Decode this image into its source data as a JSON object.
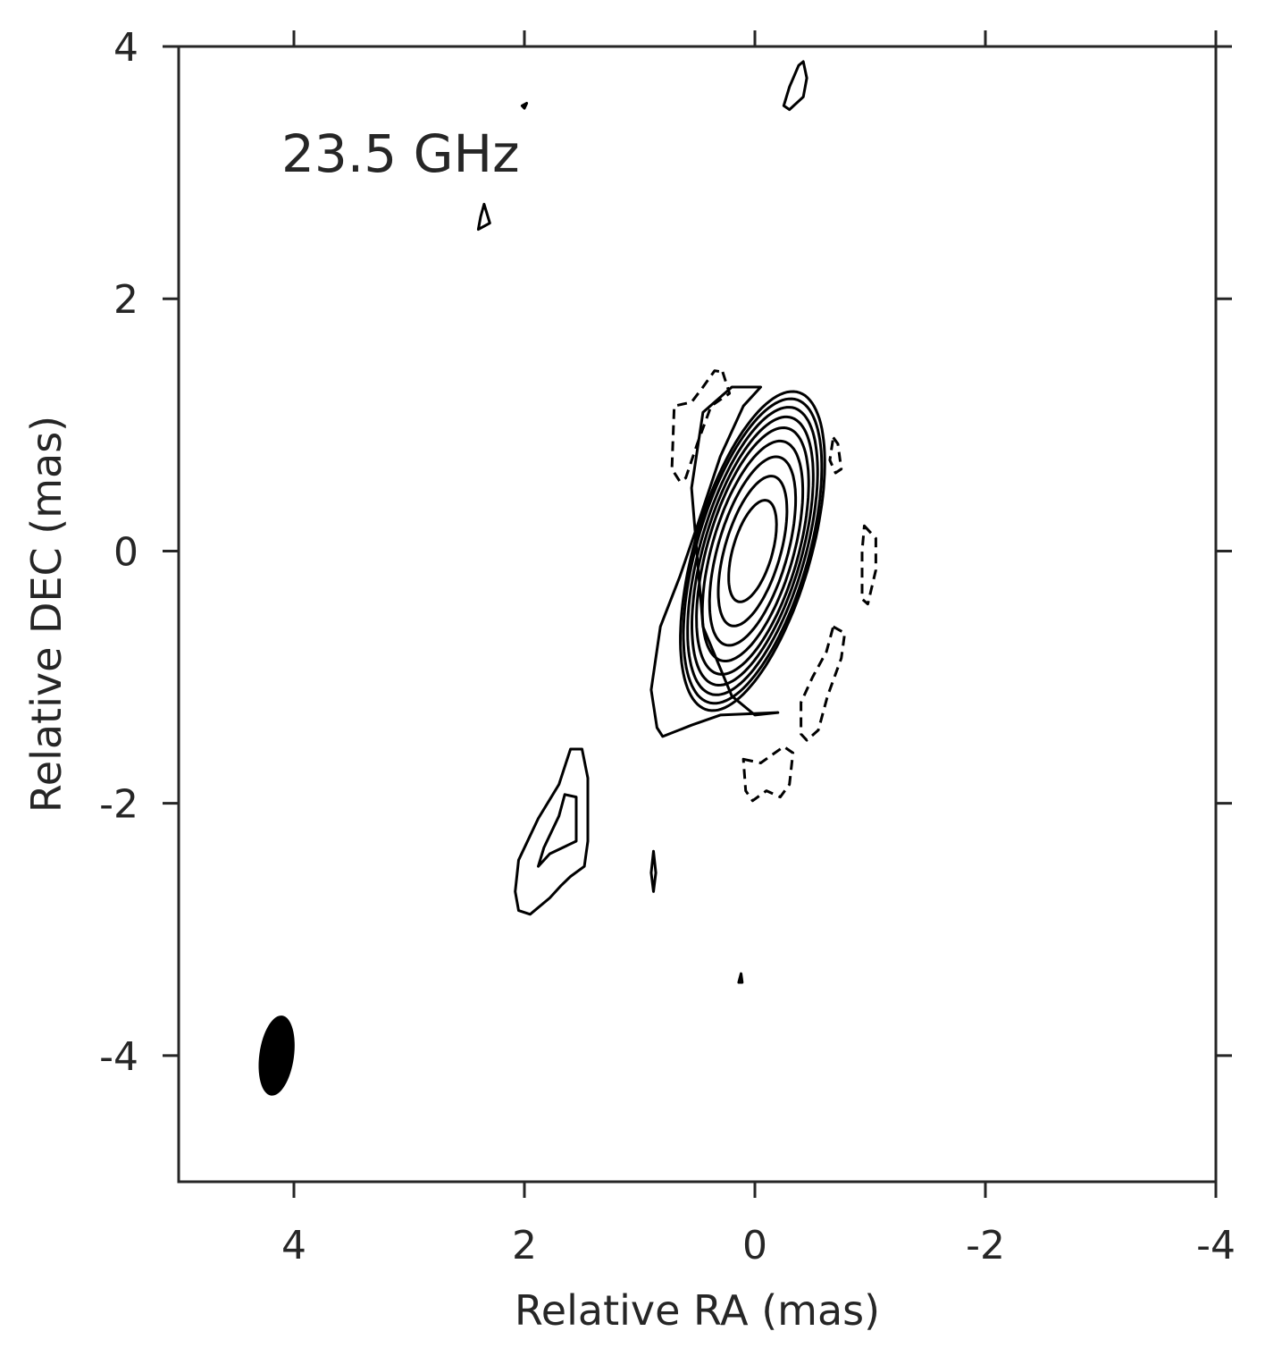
{
  "chart_data": {
    "type": "contour",
    "title": "",
    "annotation": "23.5 GHz",
    "xlabel": "Relative RA (mas)",
    "ylabel": "Relative DEC (mas)",
    "xlim": [
      5,
      -4
    ],
    "ylim": [
      -5,
      4
    ],
    "x_ticks": [
      4,
      2,
      0,
      -2,
      -4
    ],
    "x_tick_labels": [
      "4",
      "2",
      "0",
      "-2",
      "-4"
    ],
    "y_ticks": [
      4,
      2,
      0,
      -2,
      -4
    ],
    "y_tick_labels": [
      "4",
      "2",
      "0",
      "-2",
      "-4"
    ],
    "grid": false,
    "axis_color": "#262626",
    "contour_color": "#000000",
    "core": {
      "center": [
        0.02,
        0.0
      ],
      "position_angle_deg": 18,
      "levels": [
        {
          "semi_major": 0.42,
          "semi_minor": 0.17
        },
        {
          "semi_major": 0.62,
          "semi_minor": 0.24
        },
        {
          "semi_major": 0.78,
          "semi_minor": 0.3
        },
        {
          "semi_major": 0.91,
          "semi_minor": 0.35
        },
        {
          "semi_major": 1.02,
          "semi_minor": 0.39
        },
        {
          "semi_major": 1.11,
          "semi_minor": 0.42
        },
        {
          "semi_major": 1.19,
          "semi_minor": 0.45
        },
        {
          "semi_major": 1.26,
          "semi_minor": 0.48
        },
        {
          "semi_major": 1.32,
          "semi_minor": 0.5
        }
      ]
    },
    "positive_contours": [
      {
        "name": "core-outer-extension",
        "points": [
          [
            0.2,
            1.3
          ],
          [
            0.45,
            1.1
          ],
          [
            0.55,
            0.5
          ],
          [
            0.45,
            -0.6
          ],
          [
            0.2,
            -1.15
          ],
          [
            0.0,
            -1.3
          ],
          [
            -0.2,
            -1.28
          ],
          [
            0.3,
            -1.3
          ],
          [
            0.55,
            -1.38
          ],
          [
            0.8,
            -1.47
          ],
          [
            0.85,
            -1.4
          ],
          [
            0.9,
            -1.1
          ],
          [
            0.82,
            -0.6
          ],
          [
            0.65,
            -0.2
          ],
          [
            0.5,
            0.2
          ],
          [
            0.3,
            0.75
          ],
          [
            0.1,
            1.15
          ],
          [
            -0.05,
            1.3
          ]
        ]
      },
      {
        "name": "northern-blob",
        "points": [
          [
            -0.42,
            3.88
          ],
          [
            -0.45,
            3.75
          ],
          [
            -0.42,
            3.6
          ],
          [
            -0.3,
            3.5
          ],
          [
            -0.25,
            3.53
          ],
          [
            -0.3,
            3.68
          ],
          [
            -0.38,
            3.85
          ],
          [
            -0.42,
            3.88
          ]
        ]
      },
      {
        "name": "upper-left-blob",
        "points": [
          [
            2.35,
            2.75
          ],
          [
            2.3,
            2.6
          ],
          [
            2.4,
            2.55
          ],
          [
            2.38,
            2.65
          ],
          [
            2.35,
            2.75
          ]
        ]
      },
      {
        "name": "upper-left-speck",
        "points": [
          [
            2.02,
            3.53
          ],
          [
            1.98,
            3.55
          ],
          [
            2.0,
            3.51
          ],
          [
            2.02,
            3.53
          ]
        ]
      },
      {
        "name": "jet-knot-outer",
        "points": [
          [
            1.5,
            -1.57
          ],
          [
            1.6,
            -1.57
          ],
          [
            1.7,
            -1.85
          ],
          [
            1.88,
            -2.12
          ],
          [
            2.05,
            -2.45
          ],
          [
            2.08,
            -2.7
          ],
          [
            2.05,
            -2.85
          ],
          [
            1.95,
            -2.88
          ],
          [
            1.78,
            -2.75
          ],
          [
            1.68,
            -2.65
          ],
          [
            1.6,
            -2.58
          ],
          [
            1.48,
            -2.5
          ],
          [
            1.45,
            -2.3
          ],
          [
            1.45,
            -1.8
          ],
          [
            1.5,
            -1.57
          ]
        ]
      },
      {
        "name": "jet-knot-inner",
        "points": [
          [
            1.65,
            -1.93
          ],
          [
            1.55,
            -1.95
          ],
          [
            1.55,
            -2.3
          ],
          [
            1.78,
            -2.4
          ],
          [
            1.88,
            -2.5
          ],
          [
            1.83,
            -2.35
          ],
          [
            1.7,
            -2.1
          ],
          [
            1.65,
            -1.93
          ]
        ]
      },
      {
        "name": "small-blob",
        "points": [
          [
            0.88,
            -2.38
          ],
          [
            0.86,
            -2.55
          ],
          [
            0.88,
            -2.7
          ],
          [
            0.9,
            -2.55
          ],
          [
            0.88,
            -2.38
          ]
        ]
      },
      {
        "name": "tiny-blob",
        "points": [
          [
            0.12,
            -3.35
          ],
          [
            0.11,
            -3.42
          ],
          [
            0.14,
            -3.42
          ],
          [
            0.12,
            -3.35
          ]
        ]
      }
    ],
    "negative_contours": [
      {
        "name": "neg-upper-left",
        "points": [
          [
            0.28,
            1.42
          ],
          [
            0.22,
            1.25
          ],
          [
            0.38,
            1.15
          ],
          [
            0.5,
            0.85
          ],
          [
            0.6,
            0.58
          ],
          [
            0.65,
            0.55
          ],
          [
            0.72,
            0.65
          ],
          [
            0.7,
            1.15
          ],
          [
            0.55,
            1.18
          ],
          [
            0.45,
            1.3
          ],
          [
            0.35,
            1.43
          ],
          [
            0.28,
            1.42
          ]
        ]
      },
      {
        "name": "neg-right-upper",
        "points": [
          [
            -0.68,
            0.9
          ],
          [
            -0.72,
            0.85
          ],
          [
            -0.75,
            0.65
          ],
          [
            -0.7,
            0.62
          ],
          [
            -0.65,
            0.72
          ],
          [
            -0.68,
            0.9
          ]
        ]
      },
      {
        "name": "neg-right-mid",
        "points": [
          [
            -0.95,
            0.2
          ],
          [
            -1.05,
            0.1
          ],
          [
            -1.05,
            -0.15
          ],
          [
            -0.98,
            -0.42
          ],
          [
            -0.93,
            -0.38
          ],
          [
            -0.93,
            0.0
          ],
          [
            -0.95,
            0.2
          ]
        ]
      },
      {
        "name": "neg-lower-right",
        "points": [
          [
            -0.68,
            -0.6
          ],
          [
            -0.78,
            -0.65
          ],
          [
            -0.75,
            -0.85
          ],
          [
            -0.63,
            -1.15
          ],
          [
            -0.55,
            -1.42
          ],
          [
            -0.45,
            -1.5
          ],
          [
            -0.4,
            -1.45
          ],
          [
            -0.4,
            -1.2
          ],
          [
            -0.5,
            -1.0
          ],
          [
            -0.62,
            -0.8
          ],
          [
            -0.68,
            -0.6
          ]
        ]
      },
      {
        "name": "neg-lower",
        "points": [
          [
            0.1,
            -1.65
          ],
          [
            -0.05,
            -1.68
          ],
          [
            -0.25,
            -1.55
          ],
          [
            -0.33,
            -1.6
          ],
          [
            -0.3,
            -1.85
          ],
          [
            -0.22,
            -1.95
          ],
          [
            -0.1,
            -1.9
          ],
          [
            0.02,
            -1.98
          ],
          [
            0.08,
            -1.9
          ],
          [
            0.1,
            -1.65
          ]
        ]
      }
    ],
    "beam": {
      "center": [
        4.15,
        -4.0
      ],
      "semi_major": 0.32,
      "semi_minor": 0.15,
      "position_angle_deg": 8
    }
  }
}
